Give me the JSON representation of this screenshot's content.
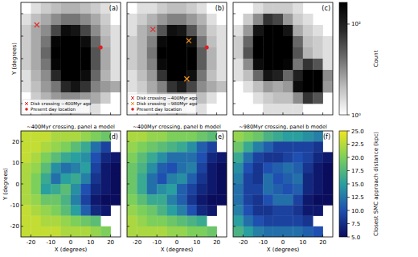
{
  "chart_data": [
    {
      "type": "heatmap",
      "label": "(a)",
      "ylabel": "Y (degrees)",
      "xlim": [
        -25,
        25
      ],
      "ylim": [
        -25,
        25
      ],
      "xticks": [
        -20,
        -10,
        0,
        10,
        20
      ],
      "yticks": [
        -20,
        -10,
        0,
        10,
        20
      ],
      "tick_labels": false,
      "legend": "lower left",
      "cells": [
        [
          1,
          2,
          3,
          4,
          5,
          5,
          4,
          3,
          2,
          1
        ],
        [
          2,
          4,
          6,
          10,
          15,
          15,
          10,
          6,
          3,
          1
        ],
        [
          3,
          6,
          10,
          40,
          200,
          150,
          40,
          10,
          4,
          2
        ],
        [
          3,
          6,
          15,
          250,
          300,
          300,
          200,
          20,
          5,
          2
        ],
        [
          3,
          6,
          20,
          300,
          300,
          300,
          300,
          30,
          6,
          2
        ],
        [
          3,
          6,
          15,
          250,
          300,
          300,
          300,
          30,
          6,
          2
        ],
        [
          2,
          5,
          10,
          80,
          300,
          300,
          200,
          20,
          5,
          2
        ],
        [
          2,
          4,
          8,
          15,
          80,
          150,
          60,
          12,
          8,
          6
        ],
        [
          1,
          3,
          5,
          8,
          10,
          10,
          8,
          6,
          3,
          1
        ],
        [
          1,
          1,
          2,
          3,
          4,
          4,
          3,
          2,
          1,
          1
        ]
      ],
      "series": [
        {
          "name": "Disk crossing ~400Myr ago",
          "color": "#e03030",
          "marker": "x",
          "x": [
            -17
          ],
          "y": [
            15
          ]
        },
        {
          "name": "Present day location",
          "color": "#e02020",
          "marker": "o",
          "x": [
            15
          ],
          "y": [
            5
          ]
        }
      ]
    },
    {
      "type": "heatmap",
      "label": "(b)",
      "xlim": [
        -25,
        25
      ],
      "ylim": [
        -25,
        25
      ],
      "xticks": [
        -20,
        -10,
        0,
        10,
        20
      ],
      "yticks": [
        -20,
        -10,
        0,
        10,
        20
      ],
      "tick_labels": false,
      "legend": "lower left",
      "cells": [
        [
          1,
          2,
          2,
          3,
          4,
          4,
          3,
          2,
          1,
          1
        ],
        [
          2,
          3,
          5,
          8,
          12,
          12,
          8,
          5,
          2,
          1
        ],
        [
          2,
          5,
          8,
          30,
          180,
          140,
          30,
          8,
          3,
          2
        ],
        [
          3,
          5,
          12,
          220,
          300,
          300,
          180,
          15,
          4,
          2
        ],
        [
          3,
          5,
          15,
          300,
          300,
          300,
          300,
          25,
          5,
          2
        ],
        [
          3,
          5,
          12,
          220,
          300,
          300,
          300,
          25,
          5,
          2
        ],
        [
          2,
          4,
          8,
          60,
          300,
          300,
          180,
          15,
          4,
          2
        ],
        [
          2,
          3,
          6,
          12,
          60,
          120,
          40,
          10,
          6,
          4
        ],
        [
          1,
          2,
          4,
          6,
          8,
          8,
          6,
          4,
          2,
          1
        ],
        [
          1,
          1,
          2,
          2,
          3,
          3,
          2,
          2,
          1,
          1
        ]
      ],
      "series": [
        {
          "name": "Disk crossing ~400Myr ago",
          "color": "#e03030",
          "marker": "x",
          "x": [
            -12
          ],
          "y": [
            13
          ]
        },
        {
          "name": "Disk crossing ~980Myr ago",
          "color": "#f08c1e",
          "marker": "x",
          "x": [
            6,
            5
          ],
          "y": [
            8,
            -9
          ]
        },
        {
          "name": "Present day location",
          "color": "#e02020",
          "marker": "o",
          "x": [
            15
          ],
          "y": [
            5
          ]
        }
      ]
    },
    {
      "type": "heatmap",
      "label": "(c)",
      "xlim": [
        -25,
        25
      ],
      "ylim": [
        -25,
        25
      ],
      "xticks": [
        -20,
        -10,
        0,
        10,
        20
      ],
      "yticks": [
        -20,
        -10,
        0,
        10,
        20
      ],
      "tick_labels": false,
      "cells": [
        [
          null,
          null,
          2,
          3,
          3,
          3,
          2,
          null,
          null,
          null
        ],
        [
          null,
          3,
          10,
          60,
          40,
          8,
          3,
          2,
          null,
          null
        ],
        [
          2,
          8,
          150,
          300,
          300,
          150,
          6,
          3,
          2,
          null
        ],
        [
          3,
          20,
          300,
          300,
          300,
          300,
          20,
          4,
          3,
          2
        ],
        [
          3,
          30,
          300,
          300,
          300,
          300,
          30,
          5,
          3,
          2
        ],
        [
          2,
          10,
          200,
          300,
          300,
          250,
          15,
          60,
          30,
          2
        ],
        [
          2,
          4,
          20,
          150,
          100,
          20,
          100,
          300,
          300,
          10
        ],
        [
          null,
          2,
          4,
          8,
          6,
          8,
          200,
          300,
          300,
          8
        ],
        [
          null,
          null,
          2,
          3,
          4,
          4,
          10,
          60,
          30,
          null
        ],
        [
          null,
          null,
          null,
          2,
          2,
          2,
          2,
          null,
          null,
          null
        ]
      ],
      "colorbar": {
        "label": "Count",
        "lim": [
          1,
          300
        ],
        "log": true,
        "ticks": [
          {
            "value": 1,
            "label": "10⁰"
          },
          {
            "value": 100,
            "label": "10²"
          }
        ],
        "colors": [
          "#ffffff",
          "#bdbdbd",
          "#6e6e6e",
          "#2a2a2a",
          "#000000"
        ]
      }
    },
    {
      "type": "heatmap",
      "label": "(d)",
      "title": "~400Myr crossing, panel a model",
      "xlabel": "X (degrees)",
      "ylabel": "Y (degrees)",
      "xlim": [
        -25,
        25
      ],
      "ylim": [
        -25,
        25
      ],
      "xticks": [
        -20,
        -10,
        0,
        10,
        20
      ],
      "yticks": [
        -20,
        -10,
        0,
        10,
        20
      ],
      "cells": [
        [
          23,
          23,
          23,
          22,
          22,
          22,
          21,
          20,
          19,
          null
        ],
        [
          23,
          23,
          22,
          21,
          20,
          18,
          16,
          12,
          9,
          null
        ],
        [
          23,
          22,
          20,
          18,
          16,
          15,
          14,
          10,
          7,
          6
        ],
        [
          22,
          21,
          18,
          14,
          12,
          13,
          15,
          9,
          6,
          5
        ],
        [
          22,
          20,
          16,
          12,
          15,
          16,
          13,
          8,
          6,
          5
        ],
        [
          22,
          20,
          15,
          16,
          18,
          14,
          10,
          7,
          6,
          5
        ],
        [
          22,
          21,
          19,
          19,
          17,
          13,
          9,
          6,
          5,
          5
        ],
        [
          23,
          22,
          21,
          20,
          18,
          15,
          11,
          7,
          6,
          null
        ],
        [
          23,
          23,
          22,
          22,
          21,
          20,
          19,
          18,
          null,
          null
        ],
        [
          23,
          23,
          23,
          23,
          22,
          22,
          22,
          21,
          20,
          null
        ]
      ]
    },
    {
      "type": "heatmap",
      "label": "(e)",
      "title": "~400Myr crossing, panel b model",
      "xlabel": "X (degrees)",
      "xlim": [
        -25,
        25
      ],
      "ylim": [
        -25,
        25
      ],
      "xticks": [
        -20,
        -10,
        0,
        10,
        20
      ],
      "yticks": [
        -20,
        -10,
        0,
        10,
        20
      ],
      "tick_labels": "x",
      "cells": [
        [
          22,
          22,
          21,
          21,
          20,
          20,
          20,
          19,
          18,
          null
        ],
        [
          21,
          20,
          19,
          18,
          17,
          16,
          14,
          11,
          9,
          null
        ],
        [
          20,
          18,
          16,
          14,
          12,
          12,
          12,
          10,
          7,
          6
        ],
        [
          19,
          17,
          14,
          11,
          10,
          12,
          13,
          9,
          6,
          5
        ],
        [
          19,
          16,
          12,
          10,
          13,
          14,
          11,
          8,
          6,
          5
        ],
        [
          19,
          16,
          12,
          14,
          15,
          11,
          9,
          7,
          6,
          5
        ],
        [
          20,
          18,
          16,
          16,
          13,
          11,
          8,
          6,
          5,
          5
        ],
        [
          21,
          20,
          19,
          17,
          15,
          13,
          10,
          7,
          6,
          null
        ],
        [
          22,
          21,
          20,
          20,
          19,
          18,
          17,
          16,
          null,
          null
        ],
        [
          22,
          22,
          22,
          22,
          21,
          21,
          20,
          20,
          19,
          null
        ]
      ]
    },
    {
      "type": "heatmap",
      "label": "(f)",
      "title": "~980Myr crossing, panel b model",
      "xlabel": "X (degrees)",
      "xlim": [
        -25,
        25
      ],
      "ylim": [
        -25,
        25
      ],
      "xticks": [
        -20,
        -10,
        0,
        10,
        20
      ],
      "yticks": [
        -20,
        -10,
        0,
        10,
        20
      ],
      "tick_labels": "x",
      "cells": [
        [
          21,
          20,
          19,
          17,
          16,
          15,
          15,
          14,
          13,
          null
        ],
        [
          19,
          16,
          13,
          11,
          9,
          9,
          9,
          9,
          8,
          null
        ],
        [
          16,
          12,
          9,
          8,
          8,
          9,
          10,
          9,
          7,
          6
        ],
        [
          14,
          10,
          8,
          10,
          11,
          12,
          11,
          8,
          6,
          5
        ],
        [
          13,
          9,
          8,
          12,
          10,
          11,
          12,
          7,
          6,
          5
        ],
        [
          12,
          9,
          9,
          12,
          11,
          10,
          11,
          7,
          6,
          5
        ],
        [
          12,
          9,
          8,
          10,
          12,
          12,
          9,
          6,
          5,
          5
        ],
        [
          13,
          10,
          8,
          8,
          9,
          9,
          8,
          6,
          6,
          null
        ],
        [
          15,
          12,
          10,
          9,
          9,
          9,
          9,
          8,
          null,
          null
        ],
        [
          17,
          15,
          13,
          12,
          12,
          12,
          12,
          11,
          10,
          null
        ]
      ],
      "colorbar": {
        "label": "Closest SMC approach distance (kpc)",
        "lim": [
          5,
          25
        ],
        "ticks": [
          {
            "value": 5,
            "label": "5.0"
          },
          7.5,
          {
            "value": 10,
            "label": "10.0"
          },
          12.5,
          {
            "value": 15,
            "label": "15.0"
          },
          17.5,
          {
            "value": 20,
            "label": "20.0"
          },
          22.5,
          {
            "value": 25,
            "label": "25.0"
          }
        ],
        "colors": [
          "#0a0c5c",
          "#1f4fb0",
          "#2a9fa0",
          "#7ccf5a",
          "#f2e61c"
        ]
      }
    }
  ]
}
